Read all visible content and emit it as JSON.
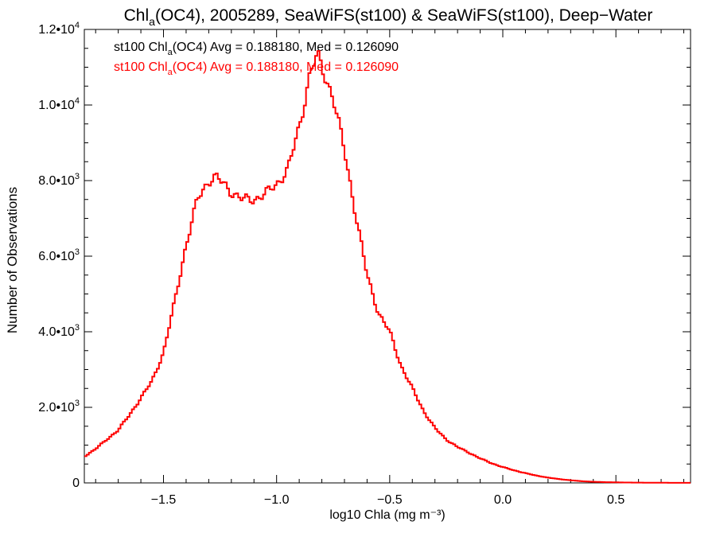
{
  "chart_data": {
    "type": "line",
    "title": "Chl_a(OC4), 2005289, SeaWiFS(st100) & SeaWiFS(st100), Deep−Water",
    "title_parts": {
      "pre": "Chl",
      "sub": "a",
      "post": "(OC4), 2005289, SeaWiFS(st100) & SeaWiFS(st100), Deep−Water"
    },
    "xlabel": "log10 Chla (mg m⁻³)",
    "ylabel": "Number of Observations",
    "xlim": [
      -1.85,
      0.83
    ],
    "ylim": [
      0,
      12000
    ],
    "grid": false,
    "x_ticks": [
      {
        "value": -1.5,
        "label": "−1.5"
      },
      {
        "value": -1.0,
        "label": "−1.0"
      },
      {
        "value": -0.5,
        "label": "−0.5"
      },
      {
        "value": 0.0,
        "label": "0.0"
      },
      {
        "value": 0.5,
        "label": "0.5"
      }
    ],
    "y_ticks": [
      {
        "value": 0,
        "mant": "0",
        "exp": ""
      },
      {
        "value": 2000,
        "mant": "2.0•10",
        "exp": "3"
      },
      {
        "value": 4000,
        "mant": "4.0•10",
        "exp": "3"
      },
      {
        "value": 6000,
        "mant": "6.0•10",
        "exp": "3"
      },
      {
        "value": 8000,
        "mant": "8.0•10",
        "exp": "3"
      },
      {
        "value": 10000,
        "mant": "1.0•10",
        "exp": "4"
      },
      {
        "value": 12000,
        "mant": "1.2•10",
        "exp": "4"
      }
    ],
    "annotations": [
      {
        "pre": "st100 Chl",
        "sub": "a",
        "post": "(OC4) Avg = 0.188180, Med = 0.126090",
        "color": "#000000"
      },
      {
        "pre": "st100 Chl",
        "sub": "a",
        "post": "(OC4) Avg = 0.188180, Med = 0.126090",
        "color": "#ff0000"
      }
    ],
    "series": [
      {
        "color": "#ff0000",
        "style": "step",
        "x": [
          -1.85,
          -1.8,
          -1.75,
          -1.7,
          -1.65,
          -1.6,
          -1.55,
          -1.5,
          -1.45,
          -1.4,
          -1.35,
          -1.3,
          -1.27,
          -1.25,
          -1.2,
          -1.15,
          -1.1,
          -1.05,
          -1.0,
          -0.95,
          -0.9,
          -0.85,
          -0.82,
          -0.8,
          -0.75,
          -0.7,
          -0.65,
          -0.6,
          -0.55,
          -0.5,
          -0.45,
          -0.4,
          -0.35,
          -0.3,
          -0.25,
          -0.2,
          -0.15,
          -0.1,
          -0.05,
          0.0,
          0.05,
          0.1,
          0.15,
          0.2,
          0.25,
          0.3,
          0.35,
          0.4,
          0.45,
          0.5,
          0.55,
          0.6,
          0.65,
          0.7,
          0.75,
          0.8,
          0.83
        ],
        "y": [
          700,
          900,
          1150,
          1400,
          1800,
          2250,
          2700,
          3450,
          4800,
          6300,
          7500,
          8000,
          8100,
          8000,
          7700,
          7500,
          7500,
          7650,
          7900,
          8300,
          9400,
          10900,
          11300,
          11000,
          10200,
          8800,
          7100,
          5500,
          4500,
          4000,
          3100,
          2500,
          1900,
          1450,
          1150,
          950,
          800,
          650,
          520,
          420,
          330,
          260,
          190,
          140,
          100,
          70,
          45,
          30,
          20,
          15,
          10,
          8,
          5,
          5,
          3,
          2,
          2
        ]
      }
    ]
  }
}
